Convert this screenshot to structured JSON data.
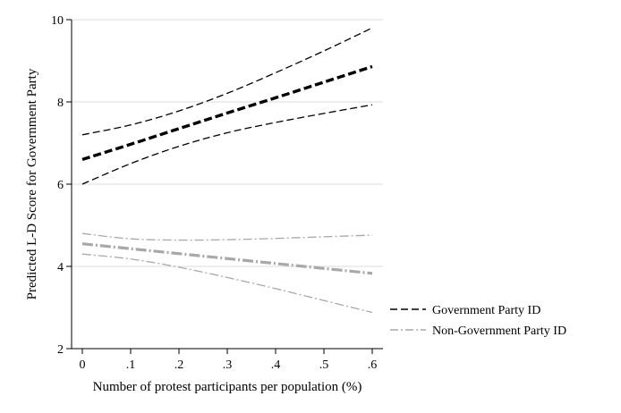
{
  "chart_data": {
    "type": "line",
    "title": "",
    "xlabel": "Number of protest participants per population (%)",
    "ylabel": "Predicted L-D Score for Government Party",
    "xlim": [
      0,
      0.6
    ],
    "ylim": [
      2,
      10
    ],
    "x_ticks": [
      0,
      0.1,
      0.2,
      0.3,
      0.4,
      0.5,
      0.6
    ],
    "x_tick_labels": [
      "0",
      ".1",
      ".2",
      ".3",
      ".4",
      ".5",
      ".6"
    ],
    "y_ticks": [
      2,
      4,
      6,
      8,
      10
    ],
    "y_tick_labels": [
      "2",
      "4",
      "6",
      "8",
      "10"
    ],
    "grid": "horizontal",
    "legend_position": "bottom-right",
    "x": [
      0,
      0.1,
      0.2,
      0.3,
      0.4,
      0.5,
      0.6
    ],
    "series": [
      {
        "name": "Government Party ID",
        "color": "#000000",
        "dash": "dashed",
        "estimate": [
          6.6,
          6.97,
          7.35,
          7.73,
          8.1,
          8.48,
          8.86
        ],
        "upper": [
          7.2,
          7.44,
          7.78,
          8.21,
          8.71,
          9.24,
          9.8
        ],
        "lower": [
          6.0,
          6.5,
          6.92,
          7.25,
          7.5,
          7.72,
          7.93
        ]
      },
      {
        "name": "Non-Government Party ID",
        "color": "#a8a8a8",
        "dash": "dash-dot",
        "estimate": [
          4.55,
          4.43,
          4.31,
          4.19,
          4.07,
          3.95,
          3.83
        ],
        "upper": [
          4.8,
          4.67,
          4.64,
          4.65,
          4.68,
          4.72,
          4.76
        ],
        "lower": [
          4.3,
          4.18,
          3.98,
          3.73,
          3.46,
          3.17,
          2.88
        ]
      }
    ]
  }
}
